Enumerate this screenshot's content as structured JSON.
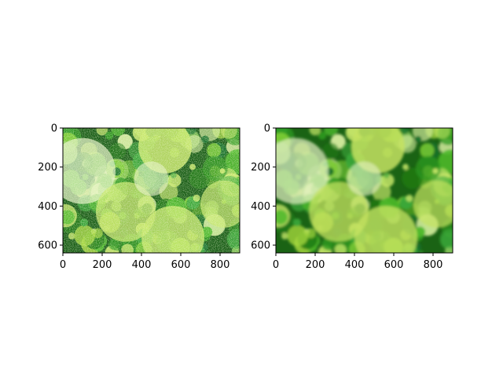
{
  "chart_data": [
    {
      "type": "image",
      "panel": "left",
      "title": "",
      "xlabel": "",
      "ylabel": "",
      "xlim": [
        0,
        900
      ],
      "ylim": [
        640,
        0
      ],
      "xticks": [
        0,
        200,
        400,
        600,
        800
      ],
      "yticks": [
        0,
        200,
        400,
        600
      ],
      "image_style": "noisy",
      "colors": {
        "base": "#2f8a1c",
        "dark": "#145a12",
        "light": "#c8e86a",
        "pale": "#e6f2c8"
      }
    },
    {
      "type": "image",
      "panel": "right",
      "title": "",
      "xlabel": "",
      "ylabel": "",
      "xlim": [
        0,
        900
      ],
      "ylim": [
        640,
        0
      ],
      "xticks": [
        0,
        200,
        400,
        600,
        800
      ],
      "yticks": [
        0,
        200,
        400,
        600
      ],
      "image_style": "smooth",
      "colors": {
        "base": "#3c9a24",
        "dark": "#1a6314",
        "light": "#c4e260",
        "pale": "#e4f0c4"
      }
    }
  ]
}
